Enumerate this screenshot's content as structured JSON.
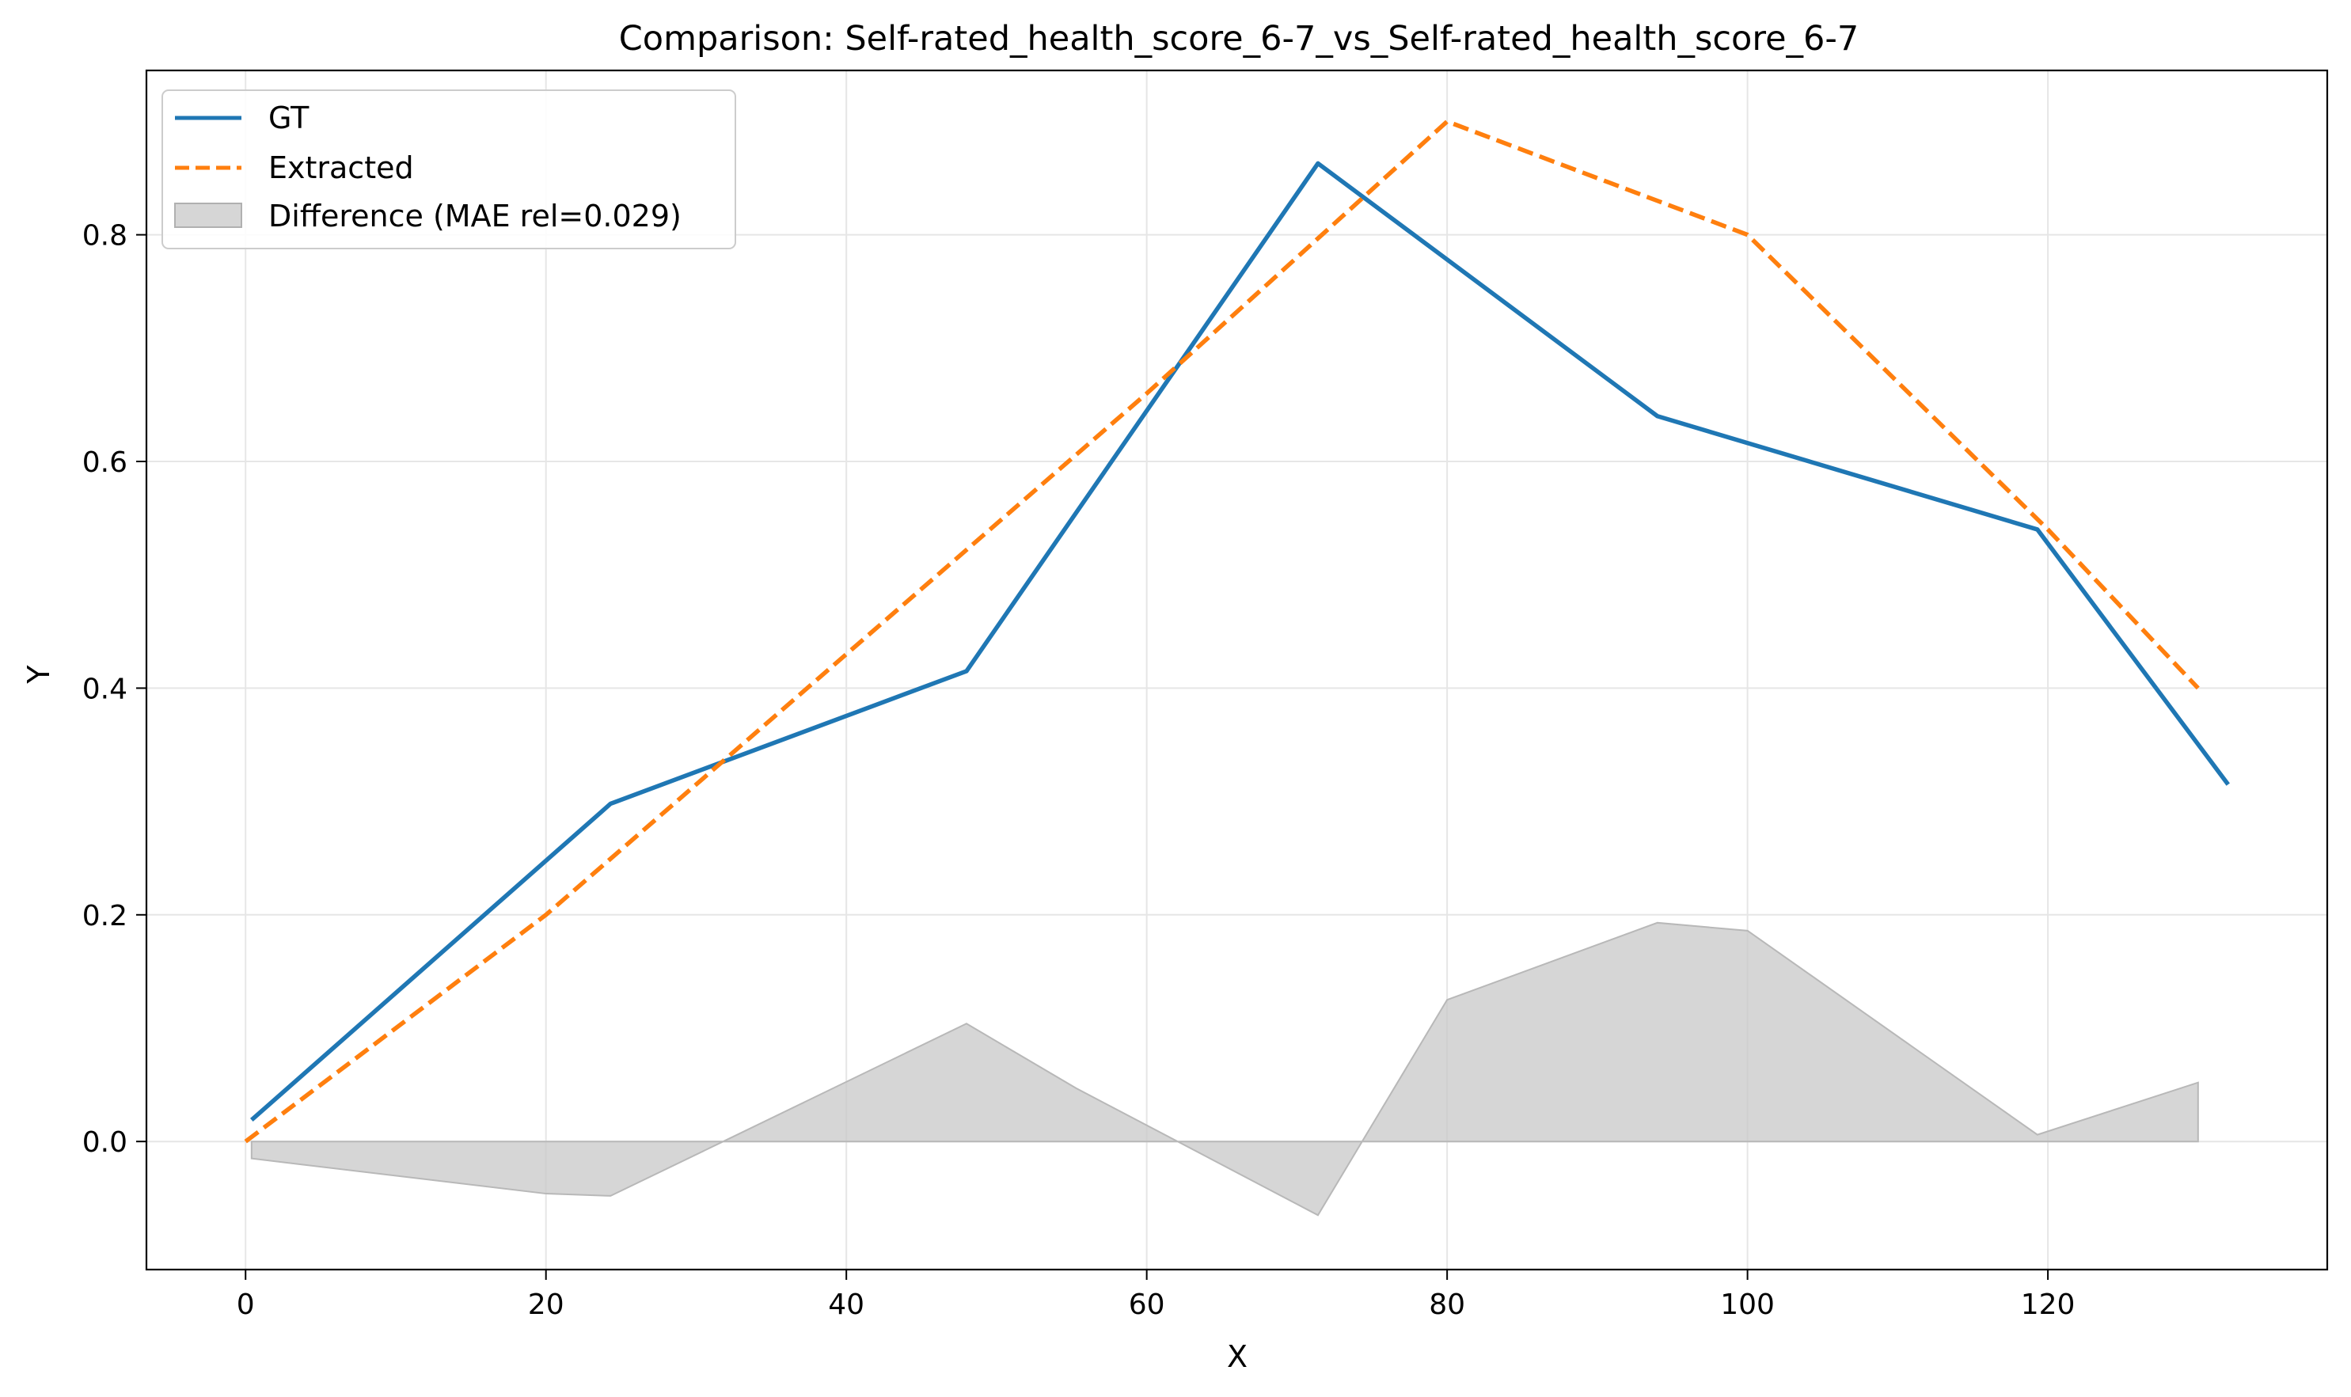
{
  "chart_data": {
    "type": "line",
    "title": "Comparison: Self-rated_health_score_6-7_vs_Self-rated_health_score_6-7",
    "xlabel": "X",
    "ylabel": "Y",
    "xlim": [
      -6.6,
      138.6
    ],
    "ylim": [
      -0.113,
      0.945
    ],
    "xticks": [
      0,
      20,
      40,
      60,
      80,
      100,
      120
    ],
    "yticks": [
      0.0,
      0.2,
      0.4,
      0.6,
      0.8
    ],
    "xtick_labels": [
      "0",
      "20",
      "40",
      "60",
      "80",
      "100",
      "120"
    ],
    "ytick_labels": [
      "0.0",
      "0.2",
      "0.4",
      "0.6",
      "0.8"
    ],
    "grid": true,
    "legend_position": "top-left",
    "series": [
      {
        "name": "GT",
        "style": "solid",
        "color": "#1f77b4",
        "x": [
          0.4,
          24.3,
          48.0,
          71.4,
          94.0,
          119.3,
          132.0
        ],
        "y": [
          0.019,
          0.298,
          0.415,
          0.863,
          0.64,
          0.54,
          0.315
        ]
      },
      {
        "name": "Extracted",
        "style": "dashed",
        "color": "#ff7f0e",
        "x": [
          0,
          20,
          40,
          60,
          80,
          100,
          120,
          130
        ],
        "y": [
          0.0,
          0.2,
          0.43,
          0.66,
          0.9,
          0.8,
          0.54,
          0.4
        ]
      },
      {
        "name": "Difference (MAE rel=0.029)",
        "type": "area",
        "color": "#c8c8c8",
        "x": [
          0.4,
          20,
          24.3,
          31.8,
          48.0,
          55.3,
          71.4,
          80,
          94.0,
          100,
          119.3,
          130
        ],
        "y": [
          -0.015,
          -0.046,
          -0.048,
          0.0,
          0.104,
          0.047,
          -0.065,
          0.125,
          0.193,
          0.186,
          0.006,
          0.052
        ]
      }
    ]
  }
}
